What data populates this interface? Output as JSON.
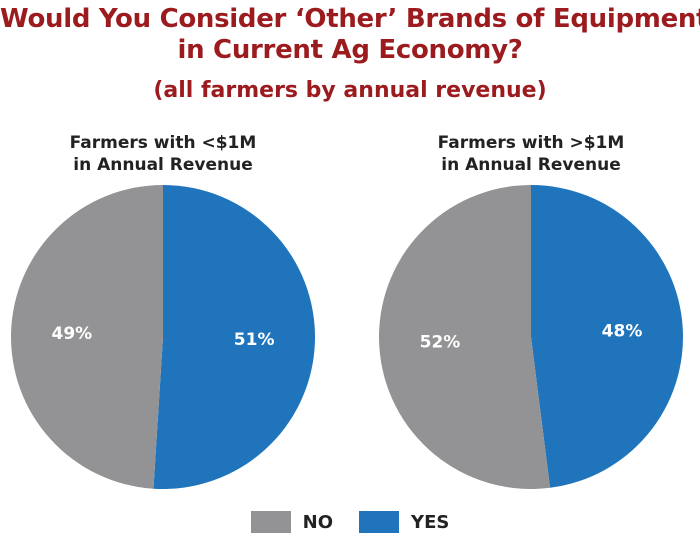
{
  "title_lines": [
    "Would You Consider ‘Other’ Brands of Equipment",
    "in Current Ag Economy?"
  ],
  "subtitle": "(all farmers by annual revenue)",
  "colors": {
    "title": "#9b1b1e",
    "no": "#939395",
    "yes": "#1f74bb"
  },
  "legend": [
    {
      "label": "NO",
      "color": "#939395"
    },
    {
      "label": "YES",
      "color": "#1f74bb"
    }
  ],
  "chart_data": [
    {
      "type": "pie",
      "title_lines": [
        "Farmers with <$1M",
        "in Annual Revenue"
      ],
      "slices": [
        {
          "name": "YES",
          "value": 51,
          "label": "51%",
          "color": "#1f74bb"
        },
        {
          "name": "NO",
          "value": 49,
          "label": "49%",
          "color": "#939395"
        }
      ]
    },
    {
      "type": "pie",
      "title_lines": [
        "Farmers with >$1M",
        "in Annual Revenue"
      ],
      "slices": [
        {
          "name": "YES",
          "value": 48,
          "label": "48%",
          "color": "#1f74bb"
        },
        {
          "name": "NO",
          "value": 52,
          "label": "52%",
          "color": "#939395"
        }
      ]
    }
  ]
}
